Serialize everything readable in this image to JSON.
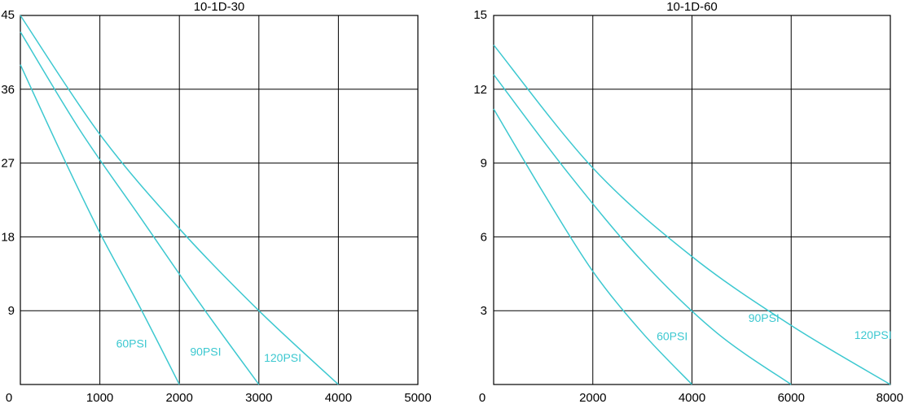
{
  "chart_data": [
    {
      "type": "line",
      "title": "10-1D-30",
      "xlim": [
        0,
        5000
      ],
      "ylim": [
        0,
        45
      ],
      "xticks": [
        0,
        1000,
        2000,
        3000,
        4000,
        5000
      ],
      "yticks": [
        0,
        9,
        18,
        27,
        36,
        45
      ],
      "grid": true,
      "color": "#3cc8d0",
      "series": [
        {
          "name": "60PSI",
          "x": [
            0,
            500,
            1000,
            1500,
            2000
          ],
          "y": [
            39,
            28.5,
            18.5,
            9.5,
            0
          ]
        },
        {
          "name": "90PSI",
          "x": [
            0,
            750,
            1500,
            2250,
            3000
          ],
          "y": [
            43,
            31,
            20.5,
            10,
            0
          ]
        },
        {
          "name": "120PSI",
          "x": [
            0,
            1000,
            2000,
            3000,
            4000
          ],
          "y": [
            45,
            30.5,
            19,
            9,
            0
          ]
        }
      ]
    },
    {
      "type": "line",
      "title": "10-1D-60",
      "xlim": [
        0,
        8000
      ],
      "ylim": [
        0,
        15
      ],
      "xticks": [
        0,
        2000,
        4000,
        6000,
        8000
      ],
      "yticks": [
        3,
        6,
        9,
        12,
        15
      ],
      "xtick_labels_shown": [
        "0",
        "2000",
        "4000",
        "6000",
        "8000"
      ],
      "ytick_labels_shown": [
        "3",
        "6",
        "9",
        "12",
        "15"
      ],
      "grid": true,
      "color": "#3cc8d0",
      "series": [
        {
          "name": "60PSI",
          "x": [
            0,
            1000,
            2000,
            3000,
            4000
          ],
          "y": [
            11.2,
            7.8,
            4.6,
            2.1,
            0
          ]
        },
        {
          "name": "90PSI",
          "x": [
            0,
            1500,
            3000,
            4500,
            6000
          ],
          "y": [
            12.6,
            8.6,
            5.0,
            2.1,
            0
          ]
        },
        {
          "name": "120PSI",
          "x": [
            0,
            2000,
            4000,
            6000,
            8000
          ],
          "y": [
            13.8,
            8.8,
            5.2,
            2.4,
            0
          ]
        }
      ]
    }
  ]
}
